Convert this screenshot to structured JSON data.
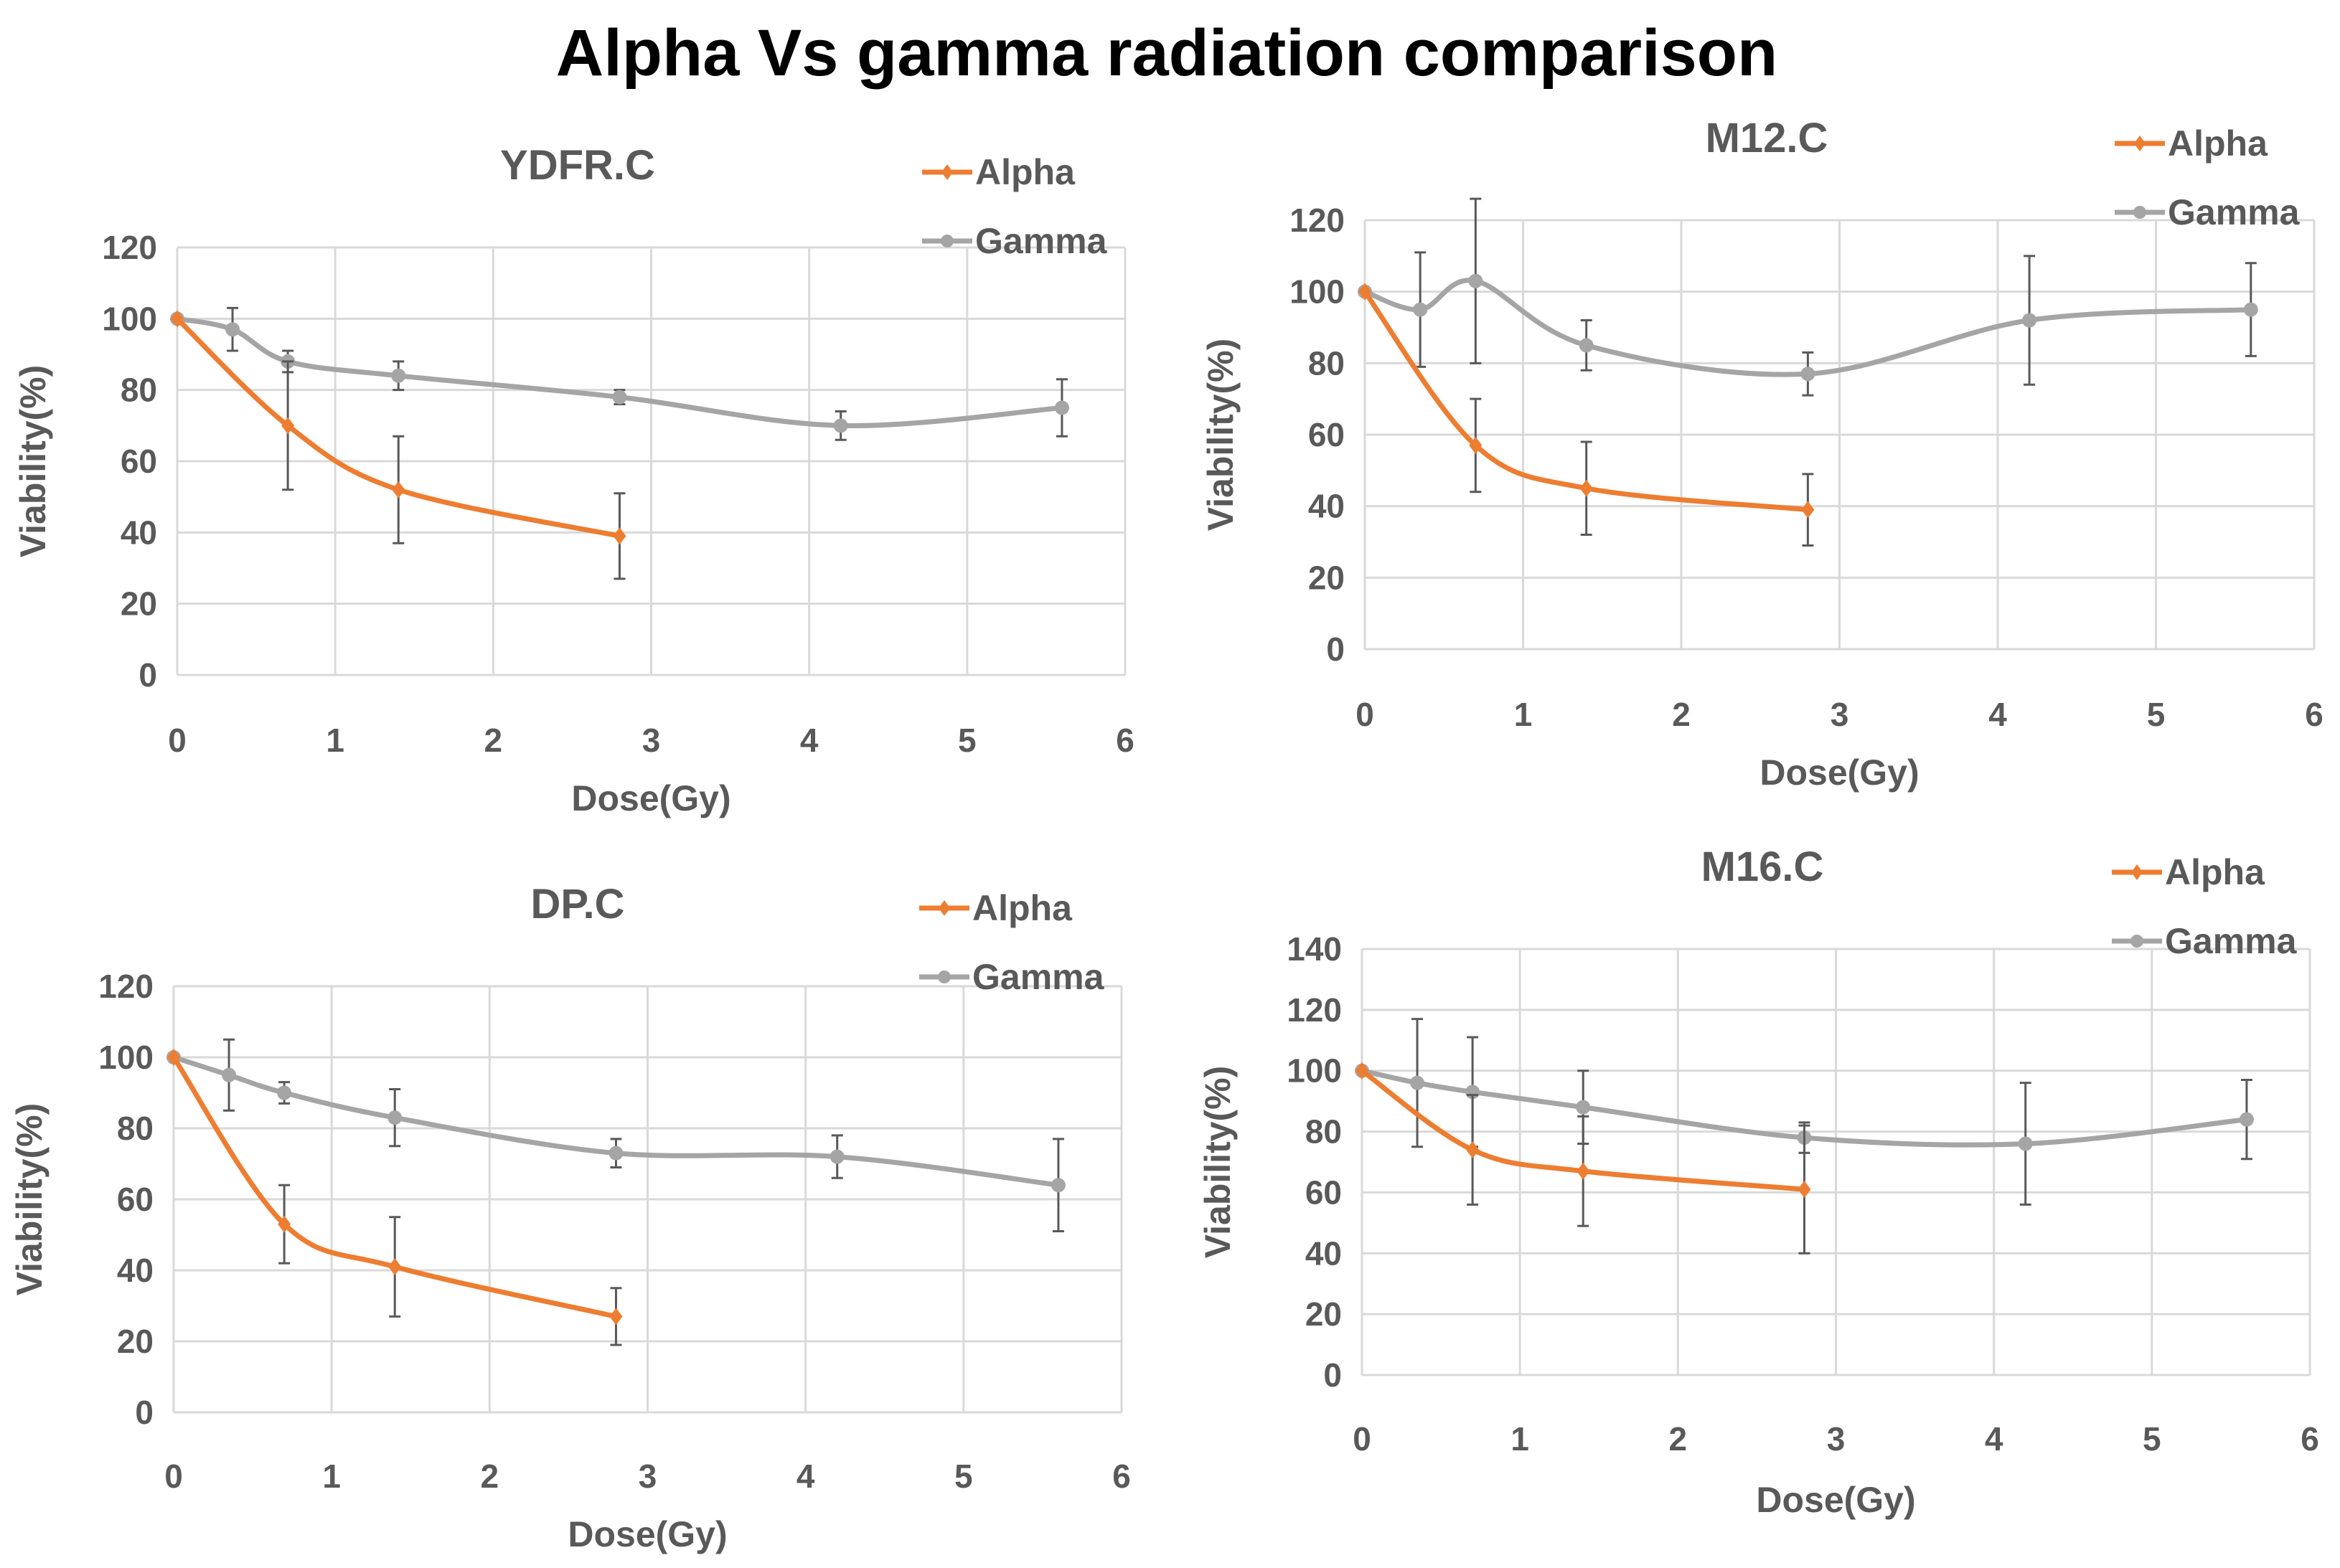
{
  "title": "Alpha Vs gamma radiation comparison",
  "colors": {
    "alpha": "#ED7D31",
    "gamma": "#A5A5A5",
    "text": "#595959",
    "grid": "#D9D9D9",
    "error": "#595959"
  },
  "chart_data": [
    {
      "type": "line",
      "title": "YDFR.C",
      "xlabel": "Dose(Gy)",
      "ylabel": "Viability(%)",
      "xlim": [
        0,
        6
      ],
      "ylim": [
        0,
        120
      ],
      "xticks": [
        "0",
        "1",
        "2",
        "3",
        "4",
        "5",
        "6"
      ],
      "yticks": [
        "0",
        "20",
        "40",
        "60",
        "80",
        "100",
        "120"
      ],
      "grid": true,
      "legend_position": "top-right",
      "series": [
        {
          "name": "Alpha",
          "x": [
            0,
            0.7,
            1.4,
            2.8
          ],
          "y": [
            100,
            70,
            52,
            39
          ],
          "err": [
            0,
            18,
            15,
            12
          ]
        },
        {
          "name": "Gamma",
          "x": [
            0,
            0.35,
            0.7,
            1.4,
            2.8,
            4.2,
            5.6
          ],
          "y": [
            100,
            97,
            88,
            84,
            78,
            70,
            75
          ],
          "err": [
            0,
            6,
            3,
            4,
            2,
            4,
            8
          ]
        }
      ]
    },
    {
      "type": "line",
      "title": "M12.C",
      "xlabel": "Dose(Gy)",
      "ylabel": "Viability(%)",
      "xlim": [
        0,
        6
      ],
      "ylim": [
        0,
        120
      ],
      "xticks": [
        "0",
        "1",
        "2",
        "3",
        "4",
        "5",
        "6"
      ],
      "yticks": [
        "0",
        "20",
        "40",
        "60",
        "80",
        "100",
        "120"
      ],
      "grid": true,
      "legend_position": "top-right",
      "series": [
        {
          "name": "Alpha",
          "x": [
            0,
            0.7,
            1.4,
            2.8
          ],
          "y": [
            100,
            57,
            45,
            39
          ],
          "err": [
            0,
            13,
            13,
            10
          ]
        },
        {
          "name": "Gamma",
          "x": [
            0,
            0.35,
            0.7,
            1.4,
            2.8,
            4.2,
            5.6
          ],
          "y": [
            100,
            95,
            103,
            85,
            77,
            92,
            95
          ],
          "err": [
            0,
            16,
            23,
            7,
            6,
            18,
            13
          ]
        }
      ]
    },
    {
      "type": "line",
      "title": "DP.C",
      "xlabel": "Dose(Gy)",
      "ylabel": "Viability(%)",
      "xlim": [
        0,
        6
      ],
      "ylim": [
        0,
        120
      ],
      "xticks": [
        "0",
        "1",
        "2",
        "3",
        "4",
        "5",
        "6"
      ],
      "yticks": [
        "0",
        "20",
        "40",
        "60",
        "80",
        "100",
        "120"
      ],
      "grid": true,
      "legend_position": "top-right",
      "series": [
        {
          "name": "Alpha",
          "x": [
            0,
            0.7,
            1.4,
            2.8
          ],
          "y": [
            100,
            53,
            41,
            27
          ],
          "err": [
            0,
            11,
            14,
            8
          ]
        },
        {
          "name": "Gamma",
          "x": [
            0,
            0.35,
            0.7,
            1.4,
            2.8,
            4.2,
            5.6
          ],
          "y": [
            100,
            95,
            90,
            83,
            73,
            72,
            64
          ],
          "err": [
            0,
            10,
            3,
            8,
            4,
            6,
            13
          ]
        }
      ]
    },
    {
      "type": "line",
      "title": "M16.C",
      "xlabel": "Dose(Gy)",
      "ylabel": "Viability(%)",
      "xlim": [
        0,
        6
      ],
      "ylim": [
        0,
        140
      ],
      "xticks": [
        "0",
        "1",
        "2",
        "3",
        "4",
        "5",
        "6"
      ],
      "yticks": [
        "0",
        "20",
        "40",
        "60",
        "80",
        "100",
        "120",
        "140"
      ],
      "grid": true,
      "legend_position": "top-right",
      "series": [
        {
          "name": "Alpha",
          "x": [
            0,
            0.7,
            1.4,
            2.8
          ],
          "y": [
            100,
            74,
            67,
            61
          ],
          "err": [
            0,
            18,
            18,
            21
          ]
        },
        {
          "name": "Gamma",
          "x": [
            0,
            0.35,
            0.7,
            1.4,
            2.8,
            4.2,
            5.6
          ],
          "y": [
            100,
            96,
            93,
            88,
            78,
            76,
            84
          ],
          "err": [
            0,
            21,
            18,
            12,
            5,
            20,
            13
          ]
        }
      ]
    }
  ]
}
